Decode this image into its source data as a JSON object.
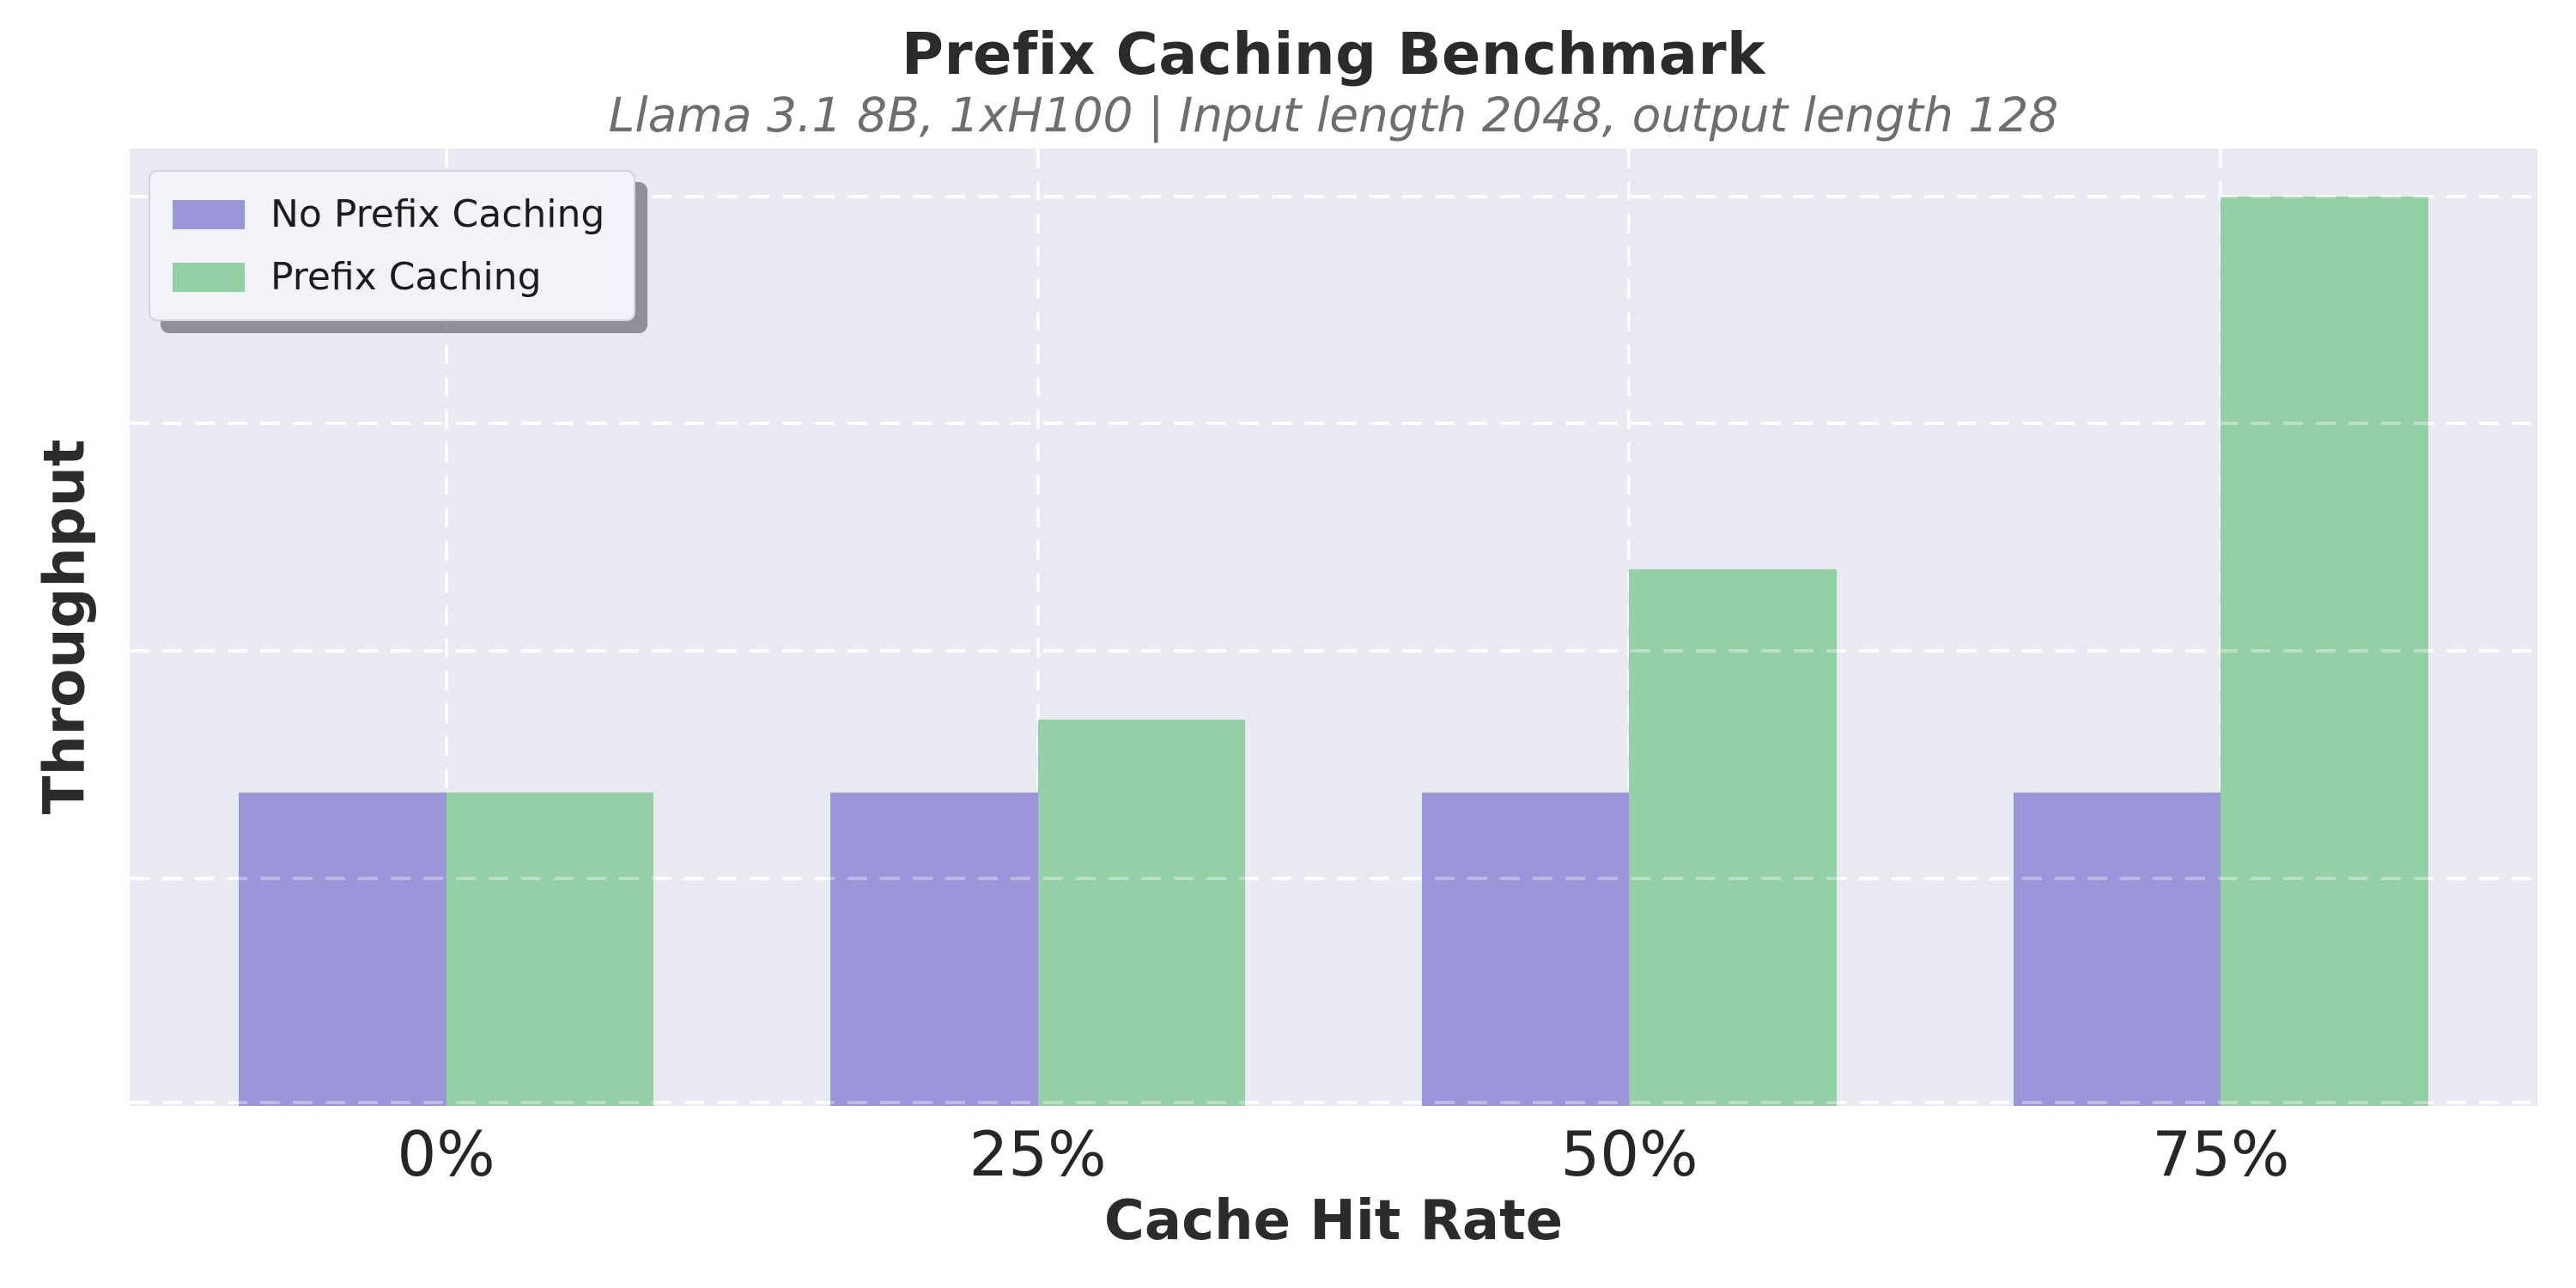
{
  "chart_data": {
    "type": "bar",
    "title": "Prefix Caching Benchmark",
    "subtitle": "Llama 3.1 8B, 1xH100 | Input length 2048, output length 128",
    "xlabel": "Cache Hit Rate",
    "ylabel": "Throughput",
    "categories": [
      "0%",
      "25%",
      "50%",
      "75%"
    ],
    "series": [
      {
        "name": "No Prefix Caching",
        "color": "#9b96da",
        "values": [
          1.38,
          1.38,
          1.38,
          1.38
        ]
      },
      {
        "name": "Prefix Caching",
        "color": "#95cfa5",
        "values": [
          1.38,
          1.7,
          2.36,
          4.0
        ]
      }
    ],
    "ylim": [
      0,
      4.21
    ],
    "yticks": [
      0,
      1,
      2,
      3,
      4
    ],
    "ytick_labels_visible": false,
    "xlim": [
      -0.535,
      3.535
    ],
    "bar_half_width_units": 0.35,
    "grid": {
      "visible": true,
      "style": "dashed",
      "color": "#fbfbfd",
      "drawn_over_bars": true
    },
    "legend": {
      "position": "upper-left",
      "entries": [
        "No Prefix Caching",
        "Prefix Caching"
      ]
    },
    "plot_background": "#e9e9f2",
    "figure_background": "#ffffff"
  }
}
